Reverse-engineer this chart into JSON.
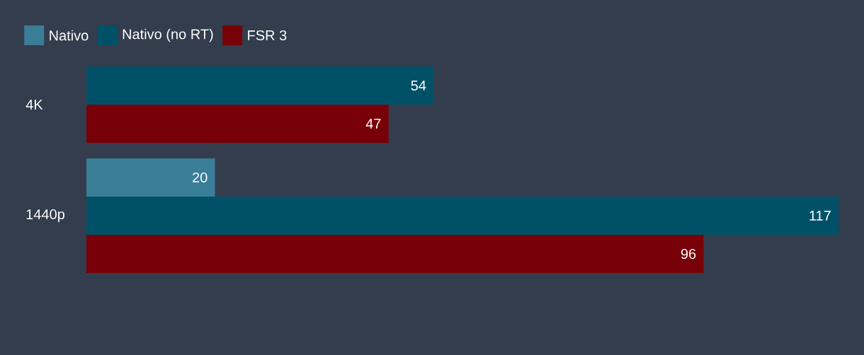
{
  "chart_data": {
    "type": "bar",
    "orientation": "horizontal",
    "categories": [
      "4K",
      "1440p"
    ],
    "series": [
      {
        "name": "Nativo",
        "color": "#3a7d97",
        "values": [
          null,
          20
        ]
      },
      {
        "name": "Nativo (no RT)",
        "color": "#005167",
        "values": [
          54,
          117
        ]
      },
      {
        "name": "FSR 3",
        "color": "#780008",
        "values": [
          47,
          96
        ]
      }
    ],
    "data_labels": true,
    "legend": "top left"
  }
}
